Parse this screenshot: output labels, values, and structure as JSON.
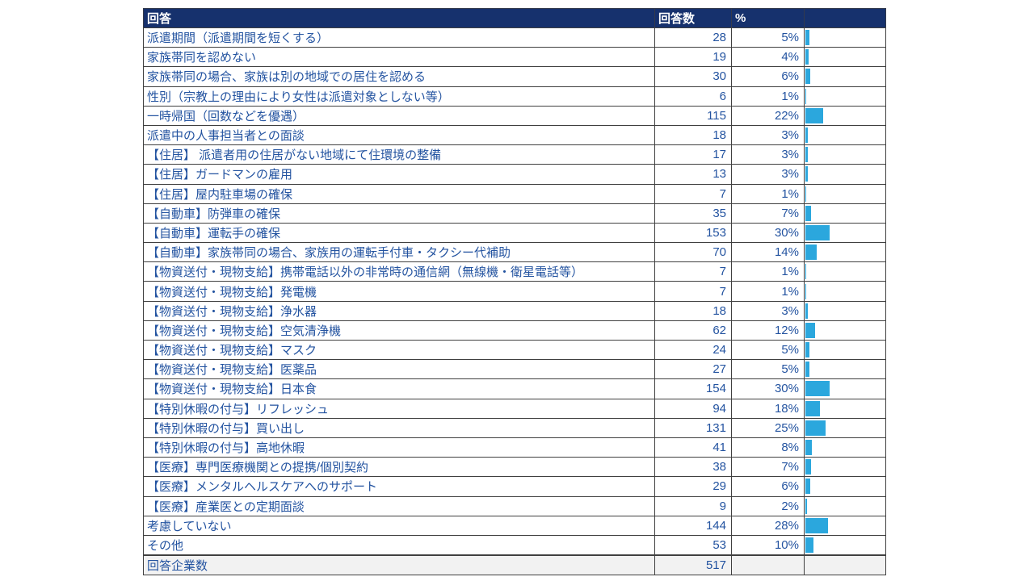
{
  "table": {
    "headers": {
      "answer": "回答",
      "count": "回答数",
      "percent": "%"
    },
    "rows": [
      {
        "label": "派遣期間（派遣期間を短くする）",
        "count": "28",
        "pct": "5%",
        "pct_value": 5
      },
      {
        "label": "家族帯同を認めない",
        "count": "19",
        "pct": "4%",
        "pct_value": 4
      },
      {
        "label": "家族帯同の場合、家族は別の地域での居住を認める",
        "count": "30",
        "pct": "6%",
        "pct_value": 6
      },
      {
        "label": "性別（宗教上の理由により女性は派遣対象としない等）",
        "count": "6",
        "pct": "1%",
        "pct_value": 1
      },
      {
        "label": "一時帰国（回数などを優遇）",
        "count": "115",
        "pct": "22%",
        "pct_value": 22
      },
      {
        "label": "派遣中の人事担当者との面談",
        "count": "18",
        "pct": "3%",
        "pct_value": 3
      },
      {
        "label": "【住居】 派遣者用の住居がない地域にて住環境の整備",
        "count": "17",
        "pct": "3%",
        "pct_value": 3
      },
      {
        "label": "【住居】ガードマンの雇用",
        "count": "13",
        "pct": "3%",
        "pct_value": 3
      },
      {
        "label": "【住居】屋内駐車場の確保",
        "count": "7",
        "pct": "1%",
        "pct_value": 1
      },
      {
        "label": "【自動車】防弾車の確保",
        "count": "35",
        "pct": "7%",
        "pct_value": 7
      },
      {
        "label": "【自動車】運転手の確保",
        "count": "153",
        "pct": "30%",
        "pct_value": 30
      },
      {
        "label": "【自動車】家族帯同の場合、家族用の運転手付車・タクシー代補助",
        "count": "70",
        "pct": "14%",
        "pct_value": 14
      },
      {
        "label": "【物資送付・現物支給】携帯電話以外の非常時の通信網（無線機・衛星電話等）",
        "count": "7",
        "pct": "1%",
        "pct_value": 1
      },
      {
        "label": "【物資送付・現物支給】発電機",
        "count": "7",
        "pct": "1%",
        "pct_value": 1
      },
      {
        "label": "【物資送付・現物支給】浄水器",
        "count": "18",
        "pct": "3%",
        "pct_value": 3
      },
      {
        "label": "【物資送付・現物支給】空気清浄機",
        "count": "62",
        "pct": "12%",
        "pct_value": 12
      },
      {
        "label": "【物資送付・現物支給】マスク",
        "count": "24",
        "pct": "5%",
        "pct_value": 5
      },
      {
        "label": "【物資送付・現物支給】医薬品",
        "count": "27",
        "pct": "5%",
        "pct_value": 5
      },
      {
        "label": "【物資送付・現物支給】日本食",
        "count": "154",
        "pct": "30%",
        "pct_value": 30
      },
      {
        "label": "【特別休暇の付与】リフレッシュ",
        "count": "94",
        "pct": "18%",
        "pct_value": 18
      },
      {
        "label": "【特別休暇の付与】買い出し",
        "count": "131",
        "pct": "25%",
        "pct_value": 25
      },
      {
        "label": "【特別休暇の付与】高地休暇",
        "count": "41",
        "pct": "8%",
        "pct_value": 8
      },
      {
        "label": "【医療】専門医療機関との提携/個別契約",
        "count": "38",
        "pct": "7%",
        "pct_value": 7
      },
      {
        "label": "【医療】メンタルヘルスケアへのサポート",
        "count": "29",
        "pct": "6%",
        "pct_value": 6
      },
      {
        "label": "【医療】産業医との定期面談",
        "count": "9",
        "pct": "2%",
        "pct_value": 2
      },
      {
        "label": "考慮していない",
        "count": "144",
        "pct": "28%",
        "pct_value": 28
      },
      {
        "label": "その他",
        "count": "53",
        "pct": "10%",
        "pct_value": 10
      }
    ],
    "total": {
      "label": "回答企業数",
      "count": "517"
    }
  },
  "colors": {
    "header_bg": "#16316d",
    "header_text": "#ffffff",
    "body_text": "#2353a0",
    "bar": "#2ba7dd",
    "total_bg": "#f2f2f2",
    "border": "#404040"
  },
  "chart_data": {
    "type": "table",
    "title": "",
    "columns": [
      "回答",
      "回答数",
      "%"
    ],
    "categories": [
      "派遣期間（派遣期間を短くする）",
      "家族帯同を認めない",
      "家族帯同の場合、家族は別の地域での居住を認める",
      "性別（宗教上の理由により女性は派遣対象としない等）",
      "一時帰国（回数などを優遇）",
      "派遣中の人事担当者との面談",
      "【住居】 派遣者用の住居がない地域にて住環境の整備",
      "【住居】ガードマンの雇用",
      "【住居】屋内駐車場の確保",
      "【自動車】防弾車の確保",
      "【自動車】運転手の確保",
      "【自動車】家族帯同の場合、家族用の運転手付車・タクシー代補助",
      "【物資送付・現物支給】携帯電話以外の非常時の通信網（無線機・衛星電話等）",
      "【物資送付・現物支給】発電機",
      "【物資送付・現物支給】浄水器",
      "【物資送付・現物支給】空気清浄機",
      "【物資送付・現物支給】マスク",
      "【物資送付・現物支給】医薬品",
      "【物資送付・現物支給】日本食",
      "【特別休暇の付与】リフレッシュ",
      "【特別休暇の付与】買い出し",
      "【特別休暇の付与】高地休暇",
      "【医療】専門医療機関との提携/個別契約",
      "【医療】メンタルヘルスケアへのサポート",
      "【医療】産業医との定期面談",
      "考慮していない",
      "その他"
    ],
    "series": [
      {
        "name": "回答数",
        "values": [
          28,
          19,
          30,
          6,
          115,
          18,
          17,
          13,
          7,
          35,
          153,
          70,
          7,
          7,
          18,
          62,
          24,
          27,
          154,
          94,
          131,
          41,
          38,
          29,
          9,
          144,
          53
        ]
      },
      {
        "name": "%",
        "values": [
          5,
          4,
          6,
          1,
          22,
          3,
          3,
          3,
          1,
          7,
          30,
          14,
          1,
          1,
          3,
          12,
          5,
          5,
          30,
          18,
          25,
          8,
          7,
          6,
          2,
          28,
          10
        ]
      }
    ],
    "bars": {
      "represents": "%",
      "scale_max": 100,
      "color": "#2ba7dd",
      "position": "right-column"
    },
    "total_row": {
      "label": "回答企業数",
      "value": 517
    },
    "grid": true,
    "legend_position": "none"
  }
}
